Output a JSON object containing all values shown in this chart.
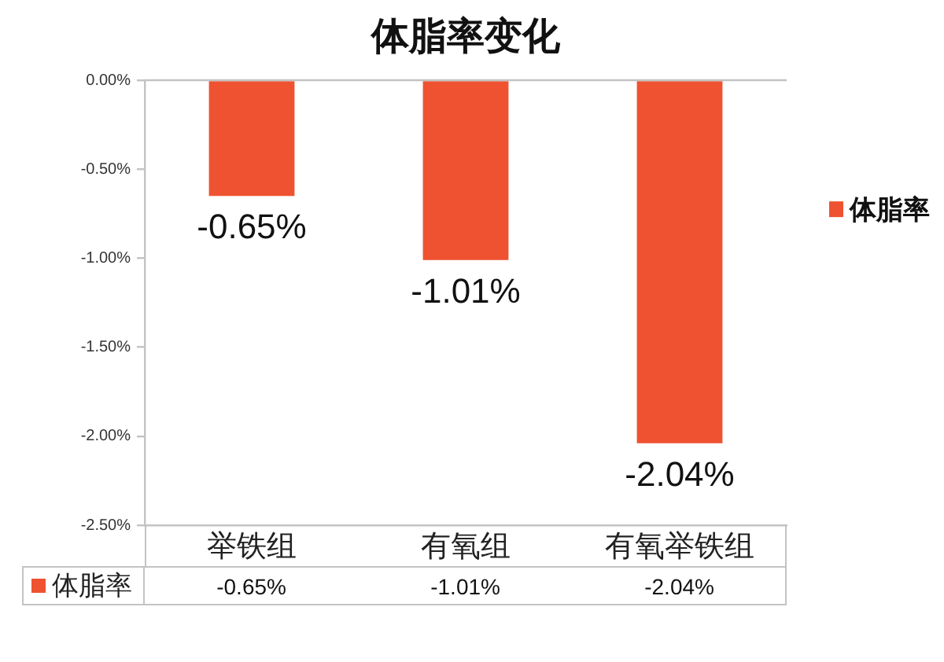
{
  "chart_data": {
    "type": "bar",
    "title": "体脂率变化",
    "categories": [
      "举铁组",
      "有氧组",
      "有氧举铁组"
    ],
    "series": [
      {
        "name": "体脂率",
        "color": "#ee5231",
        "values": [
          -0.65,
          -1.01,
          -2.04
        ],
        "value_labels": [
          "-0.65%",
          "-1.01%",
          "-2.04%"
        ]
      }
    ],
    "ylim": [
      -2.5,
      0
    ],
    "yticks": [
      {
        "value": 0,
        "label": "0.00%"
      },
      {
        "value": -0.5,
        "label": "-0.50%"
      },
      {
        "value": -1,
        "label": "-1.00%"
      },
      {
        "value": -1.5,
        "label": "-1.50%"
      },
      {
        "value": -2,
        "label": "-2.00%"
      },
      {
        "value": -2.5,
        "label": "-2.50%"
      }
    ],
    "grid": false,
    "legend": "right"
  }
}
